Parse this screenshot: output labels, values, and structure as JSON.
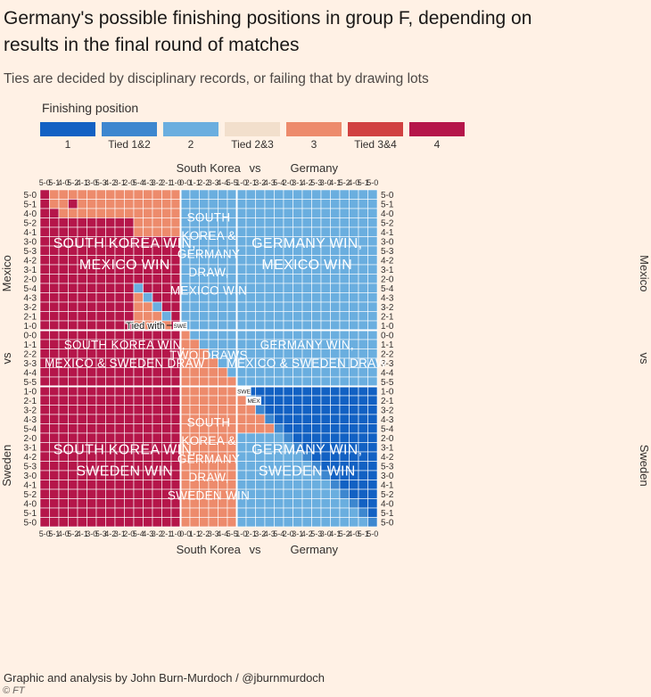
{
  "title": "Germany's possible finishing positions in group F, depending on results in the final round of matches",
  "subtitle": "Ties are decided by disciplinary records, or failing that by drawing lots",
  "legend": {
    "title": "Finishing position",
    "items": [
      {
        "label": "1",
        "color": "#1261c3"
      },
      {
        "label": "Tied 1&2",
        "color": "#3d87cf"
      },
      {
        "label": "2",
        "color": "#6aaedf"
      },
      {
        "label": "Tied 2&3",
        "color": "#f2dfcc"
      },
      {
        "label": "3",
        "color": "#ed8b6c"
      },
      {
        "label": "Tied 3&4",
        "color": "#d14141"
      },
      {
        "label": "4",
        "color": "#b5164a"
      }
    ]
  },
  "credit": "Graphic and analysis by John Burn-Murdoch / @jburnmurdoch",
  "brand": "© FT",
  "chart_data": {
    "type": "heatmap",
    "x_axis": {
      "label_left": "South Korea",
      "label_mid": "vs",
      "label_right": "Germany",
      "ticks": [
        "5-0",
        "5-1",
        "4-0",
        "5-2",
        "4-1",
        "3-0",
        "5-3",
        "4-2",
        "3-1",
        "2-0",
        "5-4",
        "4-3",
        "3-2",
        "2-1",
        "1-0",
        "0-0",
        "1-1",
        "2-2",
        "3-3",
        "4-4",
        "5-5",
        "1-0",
        "2-1",
        "3-2",
        "4-3",
        "5-4",
        "2-0",
        "3-1",
        "4-2",
        "5-3",
        "3-0",
        "4-1",
        "5-2",
        "4-0",
        "5-1",
        "5-0"
      ]
    },
    "y_axis": {
      "label_top": "Mexico",
      "label_mid": "vs",
      "label_bottom": "Sweden",
      "ticks": [
        "5-0",
        "5-1",
        "4-0",
        "5-2",
        "4-1",
        "3-0",
        "5-3",
        "4-2",
        "3-1",
        "2-0",
        "5-4",
        "4-3",
        "3-2",
        "2-1",
        "1-0",
        "0-0",
        "1-1",
        "2-2",
        "3-3",
        "4-4",
        "5-5",
        "1-0",
        "2-1",
        "3-2",
        "4-3",
        "5-4",
        "2-0",
        "3-1",
        "4-2",
        "5-3",
        "3-0",
        "4-1",
        "5-2",
        "4-0",
        "5-1",
        "5-0"
      ]
    },
    "region_labels": [
      {
        "text": "SOUTH KOREA WIN, MEXICO WIN",
        "lines": [
          "SOUTH KOREA WIN,",
          "MEXICO WIN"
        ],
        "size": "large"
      },
      {
        "text": "SOUTH KOREA & GERMANY DRAW, MEXICO WIN",
        "lines": [
          "SOUTH",
          "KOREA &",
          "GERMANY",
          "DRAW,",
          "MEXICO WIN"
        ],
        "size": "medium"
      },
      {
        "text": "GERMANY WIN, MEXICO WIN",
        "lines": [
          "GERMANY WIN,",
          "MEXICO WIN"
        ],
        "size": "large"
      },
      {
        "text": "SOUTH KOREA WIN, MEXICO & SWEDEN DRAW",
        "lines": [
          "SOUTH KOREA WIN,",
          "MEXICO & SWEDEN DRAW"
        ],
        "size": "medium"
      },
      {
        "text": "TWO DRAWS",
        "lines": [
          "TWO DRAWS"
        ],
        "size": "medium"
      },
      {
        "text": "GERMANY WIN, MEXICO & SWEDEN DRAW",
        "lines": [
          "GERMANY WIN,",
          "MEXICO & SWEDEN DRAW"
        ],
        "size": "medium"
      },
      {
        "text": "SOUTH KOREA WIN, SWEDEN WIN",
        "lines": [
          "SOUTH KOREA WIN,",
          "SWEDEN WIN"
        ],
        "size": "large"
      },
      {
        "text": "SOUTH KOREA & GERMANY DRAW, SWEDEN WIN",
        "lines": [
          "SOUTH",
          "KOREA &",
          "GERMANY",
          "DRAW,",
          "SWEDEN WIN"
        ],
        "size": "medium"
      },
      {
        "text": "GERMANY WIN, SWEDEN WIN",
        "lines": [
          "GERMANY WIN,",
          "SWEDEN WIN"
        ],
        "size": "large"
      }
    ],
    "annotations": [
      "Tied with",
      "SWE",
      "SWE",
      "MEX"
    ],
    "cell_palette": [
      "#1261c3",
      "#3d87cf",
      "#6aaedf",
      "#f2dfcc",
      "#ed8b6c",
      "#d14141",
      "#b5164a"
    ],
    "finishing_position_rules": [
      {
        "block": "South Korea win, Mexico win",
        "position": "4",
        "exceptions": "3 where Germany's margin is smaller in the upper-left corner; Tied 3&4 near the 1-goal diagonal"
      },
      {
        "block": "Draw, Mexico win",
        "position": "2"
      },
      {
        "block": "Germany win, Mexico win",
        "position": "2"
      },
      {
        "block": "South Korea win, Mexico-Sweden draw",
        "position": "4"
      },
      {
        "block": "Two draws",
        "position": "3 on and below the diagonal, 2 above it"
      },
      {
        "block": "Germany win, Mexico-Sweden draw",
        "position": "2"
      },
      {
        "block": "South Korea win, Sweden win",
        "position": "4"
      },
      {
        "block": "Draw, Sweden win",
        "position": "3"
      },
      {
        "block": "Germany win, Sweden win",
        "position": "1 above the diagonal, 2 below it, 3 for Germany's narrowest wins against Sweden's largest"
      }
    ]
  }
}
